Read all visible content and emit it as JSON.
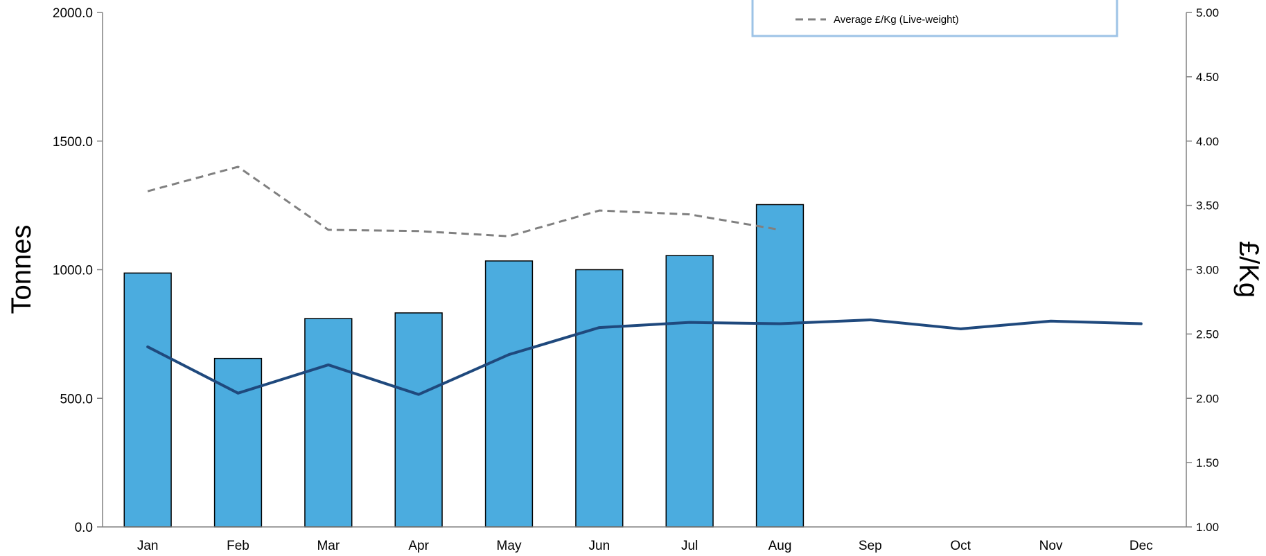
{
  "chart_data": {
    "type": "bar",
    "categories": [
      "Jan",
      "Feb",
      "Mar",
      "Apr",
      "May",
      "Jun",
      "Jul",
      "Aug",
      "Sep",
      "Oct",
      "Nov",
      "Dec"
    ],
    "series": [
      {
        "kind": "bar",
        "axis": "left",
        "color": "#4BACDF",
        "values": [
          987,
          655,
          810,
          832,
          1034,
          1000,
          1055,
          1253,
          null,
          null,
          null,
          null
        ]
      },
      {
        "kind": "line",
        "axis": "right",
        "color": "#1F497D",
        "values": [
          2.4,
          2.04,
          2.26,
          2.03,
          2.34,
          2.55,
          2.59,
          2.58,
          2.61,
          2.54,
          2.6,
          2.58
        ]
      },
      {
        "name": "Average £/Kg (Live-weight)",
        "kind": "line",
        "style": "dashed",
        "axis": "right",
        "color": "#808080",
        "values": [
          3.61,
          3.8,
          3.31,
          3.3,
          3.26,
          3.46,
          3.43,
          3.31,
          null,
          null,
          null,
          null
        ]
      }
    ],
    "ylabel": "Tonnes",
    "y2label": "£/Kg",
    "ylim": [
      0,
      2000
    ],
    "y2lim": [
      1.0,
      5.0
    ],
    "yticks": [
      "0.0",
      "500.0",
      "1000.0",
      "1500.0",
      "2000.0"
    ],
    "y2ticks": [
      "1.00",
      "1.50",
      "2.00",
      "2.50",
      "3.00",
      "3.50",
      "4.00",
      "4.50",
      "5.00"
    ],
    "grid": false,
    "legend": {
      "placement": "top-right",
      "border_color": "#9DC3E6",
      "entries": [
        "Average £/Kg (Live-weight)"
      ]
    }
  }
}
